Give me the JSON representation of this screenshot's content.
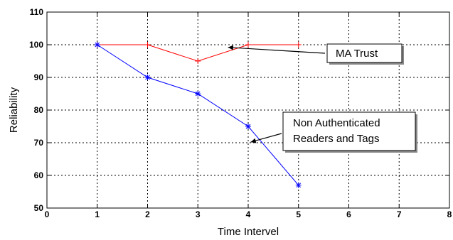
{
  "chart_data": {
    "type": "line",
    "title": "",
    "xlabel": "Time Intervel",
    "ylabel": "Reliability",
    "xlim": [
      0,
      8
    ],
    "ylim": [
      50,
      110
    ],
    "xticks": [
      0,
      1,
      2,
      3,
      4,
      5,
      6,
      7,
      8
    ],
    "yticks": [
      50,
      60,
      70,
      80,
      90,
      100,
      110
    ],
    "grid": true,
    "series": [
      {
        "name": "MA Trust",
        "color": "#ff0000",
        "marker": "+",
        "x": [
          1,
          2,
          3,
          4,
          5
        ],
        "y": [
          100,
          100,
          95,
          100,
          100
        ]
      },
      {
        "name": "Non Authenticated Readers and Tags",
        "color": "#0000ff",
        "marker": "*",
        "x": [
          1,
          2,
          3,
          4,
          5
        ],
        "y": [
          100,
          90,
          85,
          75,
          57
        ]
      }
    ],
    "annotations": [
      {
        "lines": [
          "MA Trust"
        ],
        "points_to_series": 0
      },
      {
        "lines": [
          "Non Authenticated",
          "Readers and Tags"
        ],
        "points_to_series": 1
      }
    ]
  }
}
